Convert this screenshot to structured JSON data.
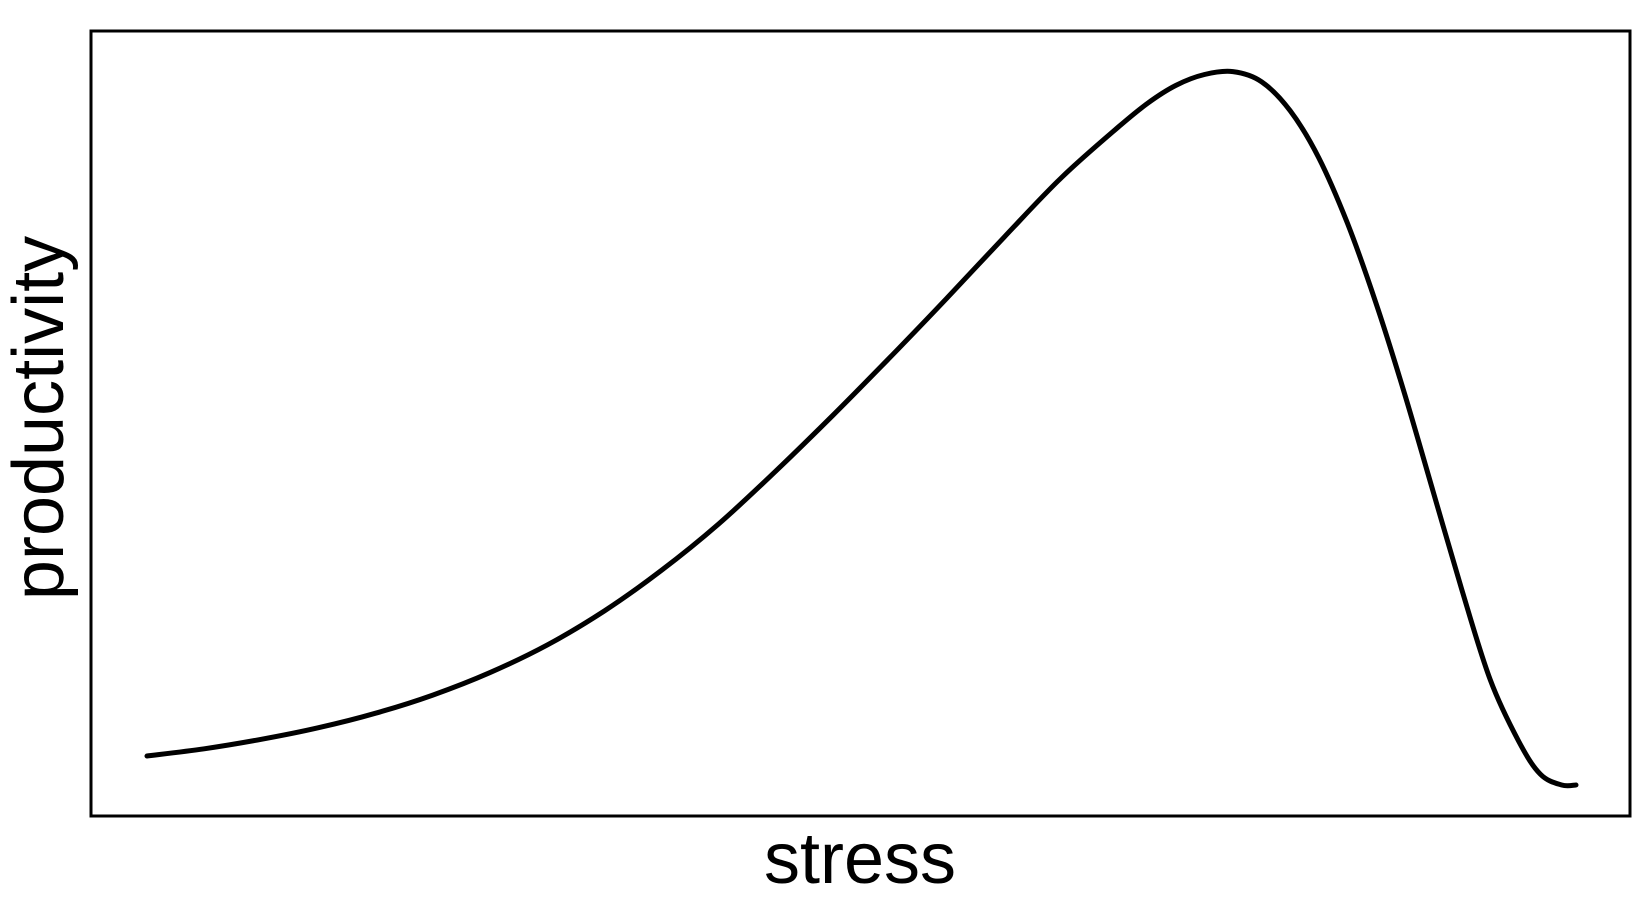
{
  "chart_data": {
    "type": "line",
    "title": "",
    "xlabel": "stress",
    "ylabel": "productivity",
    "grid": false,
    "axes_ticks": false,
    "xlim": [
      0,
      1
    ],
    "ylim": [
      0,
      1
    ],
    "line_color": "#000000",
    "series": [
      {
        "x": [
          0.0,
          0.04,
          0.08,
          0.12,
          0.16,
          0.2,
          0.24,
          0.28,
          0.32,
          0.36,
          0.4,
          0.44,
          0.48,
          0.52,
          0.56,
          0.6,
          0.64,
          0.68,
          0.7,
          0.72,
          0.74,
          0.76,
          0.78,
          0.8,
          0.82,
          0.84,
          0.86,
          0.88,
          0.9,
          0.92,
          0.94,
          0.96,
          0.975,
          0.99,
          1.0
        ],
        "y": [
          0.04,
          0.05,
          0.063,
          0.079,
          0.099,
          0.124,
          0.155,
          0.193,
          0.24,
          0.296,
          0.36,
          0.433,
          0.51,
          0.59,
          0.672,
          0.756,
          0.838,
          0.908,
          0.94,
          0.965,
          0.98,
          0.984,
          0.97,
          0.93,
          0.865,
          0.775,
          0.665,
          0.54,
          0.405,
          0.27,
          0.145,
          0.06,
          0.015,
          0.0,
          0.0
        ]
      }
    ]
  }
}
